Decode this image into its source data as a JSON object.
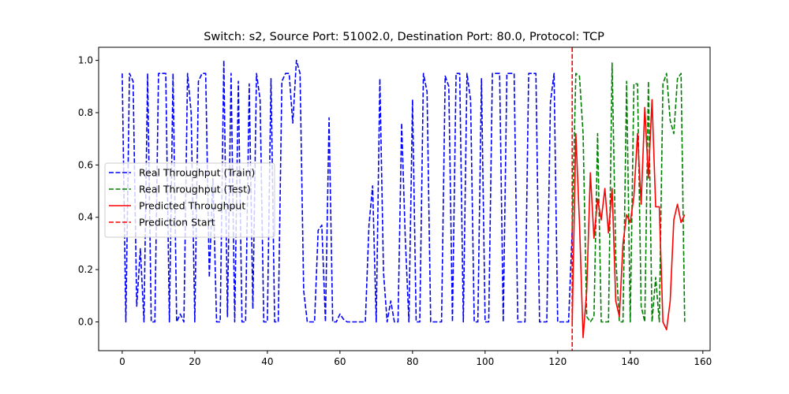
{
  "chart_data": {
    "type": "line",
    "title": "Switch: s2, Source Port: 51002.0, Destination Port: 80.0, Protocol: TCP",
    "xlabel": "",
    "ylabel": "",
    "xlim": [
      -6.5,
      162
    ],
    "ylim": [
      -0.11,
      1.05
    ],
    "xticks": [
      0,
      20,
      40,
      60,
      80,
      100,
      120,
      140,
      160
    ],
    "yticks": [
      0.0,
      0.2,
      0.4,
      0.6,
      0.8,
      1.0
    ],
    "ytick_labels": [
      "0.0",
      "0.2",
      "0.4",
      "0.6",
      "0.8",
      "1.0"
    ],
    "grid": false,
    "legend_position": "center-left",
    "series": [
      {
        "name": "Real Throughput (Train)",
        "color": "#0000ff",
        "style": "dashed",
        "x": [
          0,
          1,
          2,
          3,
          4,
          5,
          6,
          7,
          8,
          9,
          10,
          11,
          12,
          13,
          14,
          15,
          16,
          17,
          18,
          19,
          20,
          21,
          22,
          23,
          24,
          25,
          26,
          27,
          28,
          29,
          30,
          31,
          32,
          33,
          34,
          35,
          36,
          37,
          38,
          39,
          40,
          41,
          42,
          43,
          44,
          45,
          46,
          47,
          48,
          49,
          50,
          51,
          52,
          53,
          54,
          55,
          56,
          57,
          58,
          59,
          60,
          61,
          62,
          63,
          64,
          65,
          66,
          67,
          68,
          69,
          70,
          71,
          72,
          73,
          74,
          75,
          76,
          77,
          78,
          79,
          80,
          81,
          82,
          83,
          84,
          85,
          86,
          87,
          88,
          89,
          90,
          91,
          92,
          93,
          94,
          95,
          96,
          97,
          98,
          99,
          100,
          101,
          102,
          103,
          104,
          105,
          106,
          107,
          108,
          109,
          110,
          111,
          112,
          113,
          114,
          115,
          116,
          117,
          118,
          119,
          120,
          121,
          122,
          123,
          124
        ],
        "values": [
          0.95,
          0.0,
          0.95,
          0.92,
          0.06,
          0.28,
          0.0,
          0.95,
          0.0,
          0.0,
          0.95,
          0.95,
          0.95,
          0.0,
          0.95,
          0.0,
          0.03,
          0.0,
          0.95,
          0.8,
          0.0,
          0.92,
          0.95,
          0.95,
          0.17,
          0.55,
          0.0,
          0.0,
          1.0,
          0.02,
          0.95,
          0.0,
          0.92,
          0.0,
          0.0,
          0.91,
          0.05,
          0.95,
          0.85,
          0.0,
          0.0,
          0.93,
          0.0,
          0.0,
          0.92,
          0.95,
          0.95,
          0.76,
          1.0,
          0.95,
          0.12,
          0.0,
          0.0,
          0.0,
          0.35,
          0.37,
          0.0,
          0.78,
          0.0,
          0.0,
          0.03,
          0.01,
          0.0,
          0.0,
          0.0,
          0.0,
          0.0,
          0.0,
          0.37,
          0.52,
          0.0,
          0.93,
          0.19,
          0.0,
          0.08,
          0.0,
          0.0,
          0.76,
          0.32,
          0.0,
          0.85,
          0.0,
          0.0,
          0.95,
          0.88,
          0.0,
          0.0,
          0.0,
          0.0,
          0.94,
          0.9,
          0.0,
          0.95,
          0.95,
          0.0,
          0.95,
          0.85,
          0.0,
          0.0,
          0.93,
          0.0,
          0.0,
          0.95,
          0.95,
          0.95,
          0.0,
          0.95,
          0.95,
          0.95,
          0.0,
          0.0,
          0.0,
          0.95,
          0.95,
          0.95,
          0.0,
          0.0,
          0.0,
          0.84,
          0.95,
          0.0,
          0.0,
          0.0,
          0.0,
          0.35
        ]
      },
      {
        "name": "Real Throughput (Test)",
        "color": "#008000",
        "style": "dashed",
        "x": [
          124,
          125,
          126,
          127,
          128,
          129,
          130,
          131,
          132,
          133,
          134,
          135,
          136,
          137,
          138,
          139,
          140,
          141,
          142,
          143,
          144,
          145,
          146,
          147,
          148,
          149,
          150,
          151,
          152,
          153,
          154,
          155
        ],
        "values": [
          0.35,
          0.95,
          0.94,
          0.72,
          0.02,
          0.0,
          0.02,
          0.72,
          0.0,
          0.0,
          0.0,
          0.99,
          0.25,
          0.0,
          0.0,
          0.92,
          0.0,
          0.91,
          0.91,
          0.06,
          0.0,
          0.92,
          0.0,
          0.17,
          0.0,
          0.91,
          0.95,
          0.77,
          0.72,
          0.93,
          0.95,
          0.0
        ]
      },
      {
        "name": "Predicted Throughput",
        "color": "#ff0000",
        "style": "solid",
        "x": [
          124,
          125,
          126,
          127,
          128,
          129,
          130,
          131,
          132,
          133,
          134,
          135,
          136,
          137,
          138,
          139,
          140,
          141,
          142,
          143,
          144,
          145,
          146,
          147,
          148,
          149,
          150,
          151,
          152,
          153,
          154,
          155
        ],
        "values": [
          0.0,
          0.72,
          0.38,
          -0.06,
          0.12,
          0.57,
          0.32,
          0.47,
          0.39,
          0.51,
          0.34,
          0.51,
          0.08,
          0.02,
          0.3,
          0.41,
          0.38,
          0.48,
          0.72,
          0.45,
          0.82,
          0.55,
          0.85,
          0.44,
          0.44,
          0.0,
          -0.03,
          0.08,
          0.39,
          0.45,
          0.38,
          0.41
        ]
      }
    ],
    "vlines": [
      {
        "name": "Prediction Start",
        "x": 124,
        "color": "#ff0000",
        "style": "dashed"
      }
    ]
  }
}
